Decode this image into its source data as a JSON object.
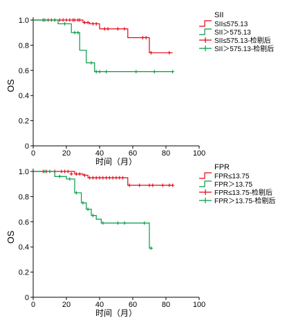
{
  "charts": [
    {
      "type": "line",
      "ylabel": "OS",
      "xlabel": "时间（月）",
      "xlim": [
        0,
        100
      ],
      "ylim": [
        0,
        1.0
      ],
      "xticks": [
        0,
        20,
        40,
        60,
        80,
        100
      ],
      "yticks": [
        0,
        0.2,
        0.4,
        0.6,
        0.8,
        1.0
      ],
      "ytick_labels": [
        "0",
        "0.2",
        "0.4",
        "0.6",
        "0.8",
        "1.0"
      ],
      "legend_title": "SII",
      "legend_position": "right",
      "legend": [
        {
          "label": "SII≤575.13",
          "kind": "step",
          "color": "#e60012"
        },
        {
          "label": "SII＞575.13",
          "kind": "step",
          "color": "#009944"
        },
        {
          "label": "SII≤575.13-检剔后",
          "kind": "censor",
          "color": "#e60012"
        },
        {
          "label": "SII＞575.13-检剔后",
          "kind": "censor",
          "color": "#009944"
        }
      ],
      "series": [
        {
          "name": "SII≤575.13",
          "color": "#e60012",
          "steps": [
            [
              0,
              1.0
            ],
            [
              30,
              0.98
            ],
            [
              34,
              0.97
            ],
            [
              40,
              0.93
            ],
            [
              57,
              0.86
            ],
            [
              70,
              0.74
            ],
            [
              84,
              0.74
            ]
          ],
          "censors": [
            [
              6,
              1.0
            ],
            [
              9,
              1.0
            ],
            [
              11,
              1.0
            ],
            [
              13,
              1.0
            ],
            [
              16,
              1.0
            ],
            [
              18,
              1.0
            ],
            [
              20,
              1.0
            ],
            [
              22,
              1.0
            ],
            [
              24,
              1.0
            ],
            [
              25,
              1.0
            ],
            [
              27,
              1.0
            ],
            [
              28,
              1.0
            ],
            [
              31,
              0.98
            ],
            [
              33,
              0.98
            ],
            [
              36,
              0.97
            ],
            [
              38,
              0.97
            ],
            [
              43,
              0.93
            ],
            [
              45,
              0.93
            ],
            [
              51,
              0.93
            ],
            [
              55,
              0.93
            ],
            [
              66,
              0.86
            ],
            [
              68,
              0.86
            ],
            [
              71,
              0.74
            ],
            [
              82,
              0.74
            ]
          ]
        },
        {
          "name": "SII＞575.13",
          "color": "#009944",
          "steps": [
            [
              0,
              1.0
            ],
            [
              15,
              0.97
            ],
            [
              23,
              0.9
            ],
            [
              28,
              0.76
            ],
            [
              32,
              0.66
            ],
            [
              37,
              0.59
            ],
            [
              84,
              0.59
            ]
          ],
          "censors": [
            [
              7,
              1.0
            ],
            [
              11,
              1.0
            ],
            [
              13,
              1.0
            ],
            [
              19,
              0.97
            ],
            [
              25,
              0.9
            ],
            [
              27,
              0.9
            ],
            [
              35,
              0.66
            ],
            [
              38,
              0.59
            ],
            [
              40,
              0.59
            ],
            [
              44,
              0.59
            ],
            [
              62,
              0.59
            ],
            [
              73,
              0.59
            ],
            [
              84,
              0.59
            ]
          ]
        }
      ]
    },
    {
      "type": "line",
      "ylabel": "OS",
      "xlabel": "时间（月）",
      "xlim": [
        0,
        100
      ],
      "ylim": [
        0,
        1.0
      ],
      "xticks": [
        0,
        20,
        40,
        60,
        80,
        100
      ],
      "yticks": [
        0,
        0.2,
        0.4,
        0.6,
        0.8,
        1.0
      ],
      "ytick_labels": [
        "0",
        "0.2",
        "0.4",
        "0.6",
        "0.8",
        "1.0"
      ],
      "legend_title": "FPR",
      "legend_position": "right",
      "legend": [
        {
          "label": "FPR≤13.75",
          "kind": "step",
          "color": "#e60012"
        },
        {
          "label": "FPR＞13.75",
          "kind": "step",
          "color": "#009944"
        },
        {
          "label": "FPR≤13.75-检剔后",
          "kind": "censor",
          "color": "#e60012"
        },
        {
          "label": "FPR＞13.75-检剔后",
          "kind": "censor",
          "color": "#009944"
        }
      ],
      "series": [
        {
          "name": "FPR≤13.75",
          "color": "#e60012",
          "steps": [
            [
              0,
              1.0
            ],
            [
              25,
              0.98
            ],
            [
              30,
              0.97
            ],
            [
              33,
              0.95
            ],
            [
              57,
              0.89
            ],
            [
              84,
              0.89
            ]
          ],
          "censors": [
            [
              6,
              1.0
            ],
            [
              8,
              1.0
            ],
            [
              10,
              1.0
            ],
            [
              13,
              1.0
            ],
            [
              17,
              1.0
            ],
            [
              19,
              1.0
            ],
            [
              21,
              1.0
            ],
            [
              23,
              0.98
            ],
            [
              26,
              0.98
            ],
            [
              28,
              0.98
            ],
            [
              31,
              0.97
            ],
            [
              34,
              0.95
            ],
            [
              36,
              0.95
            ],
            [
              38,
              0.95
            ],
            [
              40,
              0.95
            ],
            [
              42,
              0.95
            ],
            [
              44,
              0.95
            ],
            [
              46,
              0.95
            ],
            [
              48,
              0.95
            ],
            [
              50,
              0.95
            ],
            [
              52,
              0.95
            ],
            [
              54,
              0.95
            ],
            [
              58,
              0.89
            ],
            [
              64,
              0.89
            ],
            [
              70,
              0.89
            ],
            [
              72,
              0.89
            ],
            [
              78,
              0.89
            ],
            [
              82,
              0.89
            ],
            [
              84,
              0.89
            ]
          ]
        },
        {
          "name": "FPR＞13.75",
          "color": "#009944",
          "steps": [
            [
              0,
              1.0
            ],
            [
              13,
              0.96
            ],
            [
              20,
              0.94
            ],
            [
              25,
              0.83
            ],
            [
              29,
              0.75
            ],
            [
              32,
              0.7
            ],
            [
              35,
              0.65
            ],
            [
              38,
              0.62
            ],
            [
              41,
              0.59
            ],
            [
              70,
              0.39
            ],
            [
              72,
              0.39
            ]
          ],
          "censors": [
            [
              7,
              1.0
            ],
            [
              10,
              1.0
            ],
            [
              16,
              0.96
            ],
            [
              22,
              0.94
            ],
            [
              26,
              0.83
            ],
            [
              30,
              0.75
            ],
            [
              33,
              0.7
            ],
            [
              36,
              0.65
            ],
            [
              42,
              0.59
            ],
            [
              51,
              0.59
            ],
            [
              55,
              0.59
            ],
            [
              67,
              0.59
            ],
            [
              71,
              0.39
            ]
          ]
        }
      ]
    }
  ]
}
